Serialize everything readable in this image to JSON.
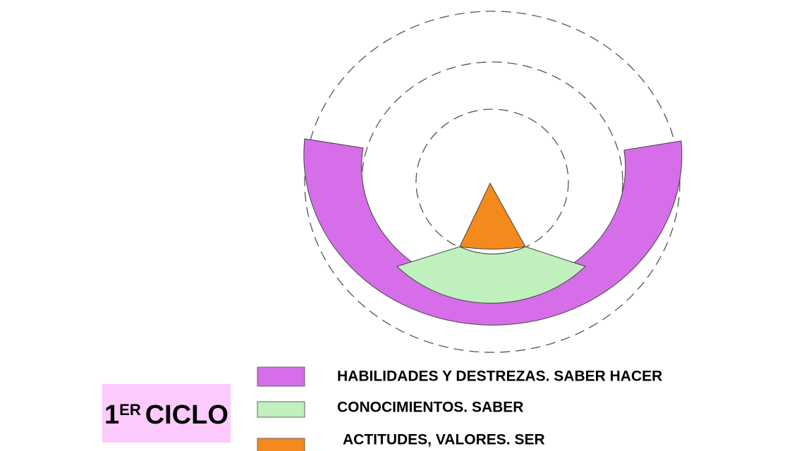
{
  "cycle": {
    "number": "1",
    "suffix": "ER",
    "word": "CICLO"
  },
  "legend": [
    {
      "label": "HABILIDADES Y DESTREZAS. SABER HACER",
      "color": "#d56ee8"
    },
    {
      "label": "CONOCIMIENTOS.  SABER",
      "color": "#bff0bd"
    },
    {
      "label": "ACTITUDES, VALORES.  SER",
      "color": "#f28a1e"
    }
  ]
}
